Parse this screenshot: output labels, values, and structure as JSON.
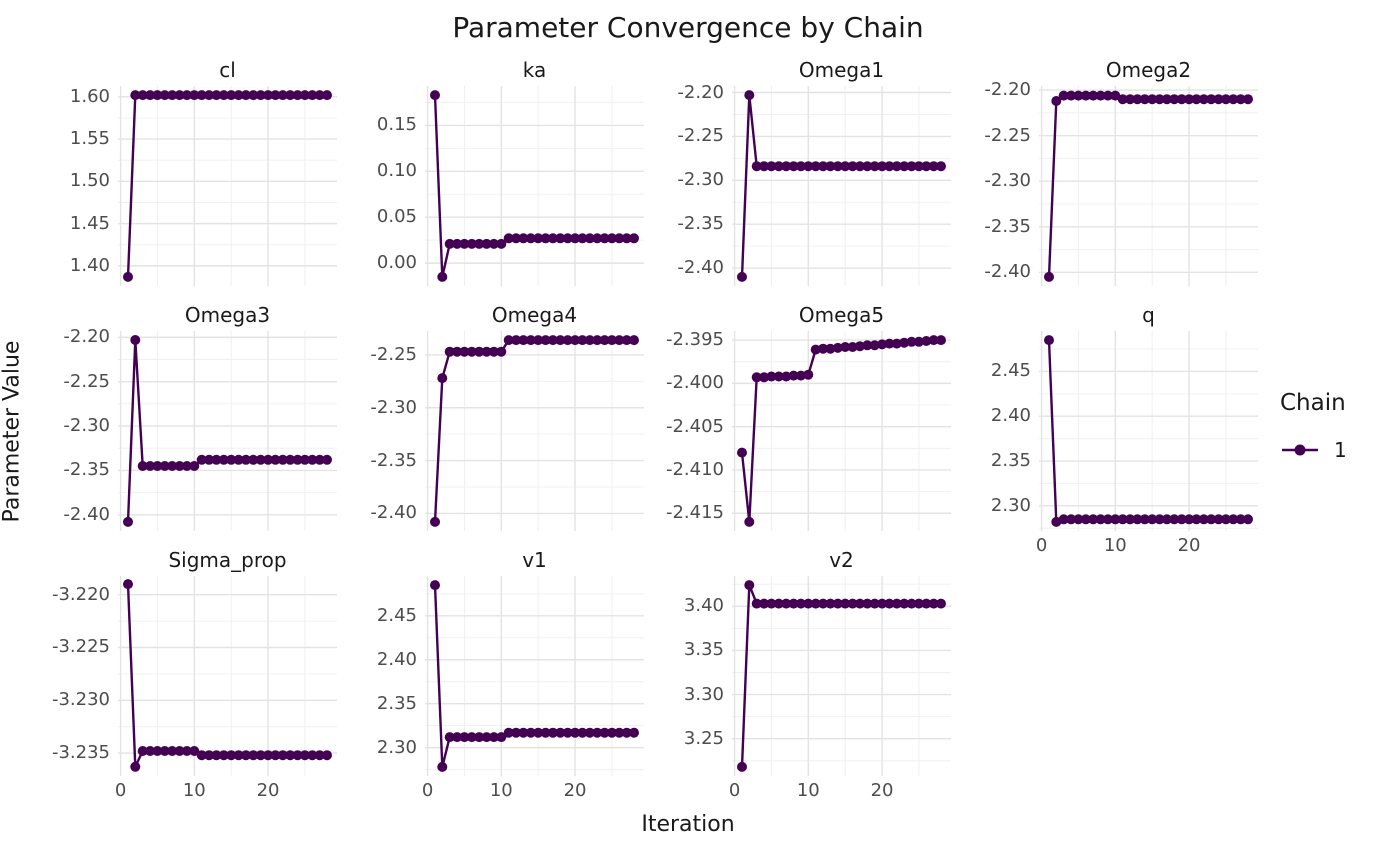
{
  "title": "Parameter Convergence by Chain",
  "x_axis_title": "Iteration",
  "y_axis_title": "Parameter Value",
  "legend": {
    "title": "Chain",
    "items": [
      {
        "label": "1",
        "color": "#440154"
      }
    ]
  },
  "colors": {
    "series": "#440154",
    "grid_major": "#e3e3e3",
    "grid_minor": "#f0f0f0",
    "tick_label": "#4d4d4d",
    "text": "#1a1a1a",
    "background": "#ffffff"
  },
  "chart_data": {
    "type": "line",
    "title": "Parameter Convergence by Chain",
    "xlabel": "Iteration",
    "ylabel": "Parameter Value",
    "legend_position": "right",
    "grid": true,
    "series_name": "Chain 1",
    "x": [
      1,
      2,
      3,
      4,
      5,
      6,
      7,
      8,
      9,
      10,
      11,
      12,
      13,
      14,
      15,
      16,
      17,
      18,
      19,
      20,
      21,
      22,
      23,
      24,
      25,
      26,
      27,
      28
    ],
    "x_ticks": [
      0,
      10,
      20
    ],
    "xlim": [
      -0.35,
      29.35
    ],
    "facets": [
      {
        "name": "cl",
        "y_ticks": [
          "1.40",
          "1.45",
          "1.50",
          "1.55",
          "1.60"
        ],
        "ylim": [
          1.3762,
          1.6128
        ],
        "x_axis": false,
        "values": [
          1.387,
          1.602,
          1.602,
          1.602,
          1.602,
          1.602,
          1.602,
          1.602,
          1.602,
          1.602,
          1.602,
          1.602,
          1.602,
          1.602,
          1.602,
          1.602,
          1.602,
          1.602,
          1.602,
          1.602,
          1.602,
          1.602,
          1.602,
          1.602,
          1.602,
          1.602,
          1.602,
          1.602
        ]
      },
      {
        "name": "ka",
        "y_ticks": [
          "0.00",
          "0.05",
          "0.10",
          "0.15"
        ],
        "ylim": [
          -0.0249,
          0.1929
        ],
        "x_axis": false,
        "values": [
          0.183,
          -0.015,
          0.021,
          0.021,
          0.021,
          0.021,
          0.021,
          0.021,
          0.021,
          0.021,
          0.027,
          0.027,
          0.027,
          0.027,
          0.027,
          0.027,
          0.027,
          0.027,
          0.027,
          0.027,
          0.027,
          0.027,
          0.027,
          0.027,
          0.027,
          0.027,
          0.027,
          0.027
        ]
      },
      {
        "name": "Omega1",
        "y_ticks": [
          "-2.40",
          "-2.35",
          "-2.30",
          "-2.25",
          "-2.20"
        ],
        "ylim": [
          -2.4204,
          -2.1926
        ],
        "x_axis": false,
        "values": [
          -2.41,
          -2.203,
          -2.284,
          -2.284,
          -2.284,
          -2.284,
          -2.284,
          -2.284,
          -2.284,
          -2.284,
          -2.284,
          -2.284,
          -2.284,
          -2.284,
          -2.284,
          -2.284,
          -2.284,
          -2.284,
          -2.284,
          -2.284,
          -2.284,
          -2.284,
          -2.284,
          -2.284,
          -2.284,
          -2.284,
          -2.284,
          -2.284
        ]
      },
      {
        "name": "Omega2",
        "y_ticks": [
          "-2.40",
          "-2.35",
          "-2.30",
          "-2.25",
          "-2.20"
        ],
        "ylim": [
          -2.415,
          -2.1955
        ],
        "x_axis": false,
        "values": [
          -2.405,
          -2.212,
          -2.206,
          -2.206,
          -2.206,
          -2.206,
          -2.206,
          -2.206,
          -2.206,
          -2.206,
          -2.21,
          -2.21,
          -2.21,
          -2.21,
          -2.21,
          -2.21,
          -2.21,
          -2.21,
          -2.21,
          -2.21,
          -2.21,
          -2.21,
          -2.21,
          -2.21,
          -2.21,
          -2.21,
          -2.21,
          -2.21
        ]
      },
      {
        "name": "Omega3",
        "y_ticks": [
          "-2.40",
          "-2.35",
          "-2.30",
          "-2.25",
          "-2.20"
        ],
        "ylim": [
          -2.4183,
          -2.1928
        ],
        "x_axis": false,
        "values": [
          -2.408,
          -2.203,
          -2.345,
          -2.345,
          -2.345,
          -2.345,
          -2.345,
          -2.345,
          -2.345,
          -2.345,
          -2.338,
          -2.338,
          -2.338,
          -2.338,
          -2.338,
          -2.338,
          -2.338,
          -2.338,
          -2.338,
          -2.338,
          -2.338,
          -2.338,
          -2.338,
          -2.338,
          -2.338,
          -2.338,
          -2.338,
          -2.338
        ]
      },
      {
        "name": "Omega4",
        "y_ticks": [
          "-2.40",
          "-2.35",
          "-2.30",
          "-2.25"
        ],
        "ylim": [
          -2.4166,
          -2.2274
        ],
        "x_axis": false,
        "values": [
          -2.408,
          -2.272,
          -2.247,
          -2.247,
          -2.247,
          -2.247,
          -2.247,
          -2.247,
          -2.247,
          -2.247,
          -2.236,
          -2.236,
          -2.236,
          -2.236,
          -2.236,
          -2.236,
          -2.236,
          -2.236,
          -2.236,
          -2.236,
          -2.236,
          -2.236,
          -2.236,
          -2.236,
          -2.236,
          -2.236,
          -2.236,
          -2.236
        ]
      },
      {
        "name": "Omega5",
        "y_ticks": [
          "-2.415",
          "-2.410",
          "-2.405",
          "-2.400",
          "-2.395"
        ],
        "ylim": [
          -2.41705,
          -2.39395
        ],
        "x_axis": false,
        "values": [
          -2.408,
          -2.416,
          -2.3993,
          -2.3993,
          -2.3992,
          -2.3992,
          -2.3992,
          -2.3991,
          -2.3991,
          -2.399,
          -2.3961,
          -2.396,
          -2.396,
          -2.3959,
          -2.3958,
          -2.3958,
          -2.3957,
          -2.3956,
          -2.3956,
          -2.3955,
          -2.3954,
          -2.3954,
          -2.3953,
          -2.3952,
          -2.3952,
          -2.3951,
          -2.395,
          -2.395
        ]
      },
      {
        "name": "q",
        "y_ticks": [
          "2.30",
          "2.35",
          "2.40",
          "2.45"
        ],
        "ylim": [
          2.2719,
          2.4951
        ],
        "x_axis": true,
        "values": [
          2.485,
          2.282,
          2.285,
          2.285,
          2.285,
          2.285,
          2.285,
          2.285,
          2.285,
          2.285,
          2.285,
          2.285,
          2.285,
          2.285,
          2.285,
          2.285,
          2.285,
          2.285,
          2.285,
          2.285,
          2.285,
          2.285,
          2.285,
          2.285,
          2.285,
          2.285,
          2.285,
          2.285
        ]
      },
      {
        "name": "Sigma_prop",
        "y_ticks": [
          "-3.235",
          "-3.230",
          "-3.225",
          "-3.220"
        ],
        "ylim": [
          -3.23717,
          -3.21823
        ],
        "x_axis": true,
        "values": [
          -3.219,
          -3.2363,
          -3.2348,
          -3.2348,
          -3.2348,
          -3.2348,
          -3.2348,
          -3.2348,
          -3.2348,
          -3.2348,
          -3.2352,
          -3.2352,
          -3.2352,
          -3.2352,
          -3.2352,
          -3.2352,
          -3.2352,
          -3.2352,
          -3.2352,
          -3.2352,
          -3.2352,
          -3.2352,
          -3.2352,
          -3.2352,
          -3.2352,
          -3.2352,
          -3.2352,
          -3.2352
        ]
      },
      {
        "name": "v1",
        "y_ticks": [
          "2.30",
          "2.35",
          "2.40",
          "2.45"
        ],
        "ylim": [
          2.2677,
          2.4953
        ],
        "x_axis": true,
        "values": [
          2.485,
          2.278,
          2.312,
          2.312,
          2.312,
          2.312,
          2.312,
          2.312,
          2.312,
          2.312,
          2.317,
          2.317,
          2.317,
          2.317,
          2.317,
          2.317,
          2.317,
          2.317,
          2.317,
          2.317,
          2.317,
          2.317,
          2.317,
          2.317,
          2.317,
          2.317,
          2.317,
          2.317
        ]
      },
      {
        "name": "v2",
        "y_ticks": [
          "3.25",
          "3.30",
          "3.35",
          "3.40"
        ],
        "ylim": [
          3.2077,
          3.4343
        ],
        "x_axis": true,
        "values": [
          3.218,
          3.424,
          3.403,
          3.403,
          3.403,
          3.403,
          3.403,
          3.403,
          3.403,
          3.403,
          3.403,
          3.403,
          3.403,
          3.403,
          3.403,
          3.403,
          3.403,
          3.403,
          3.403,
          3.403,
          3.403,
          3.403,
          3.403,
          3.403,
          3.403,
          3.403,
          3.403,
          3.403
        ]
      }
    ]
  }
}
